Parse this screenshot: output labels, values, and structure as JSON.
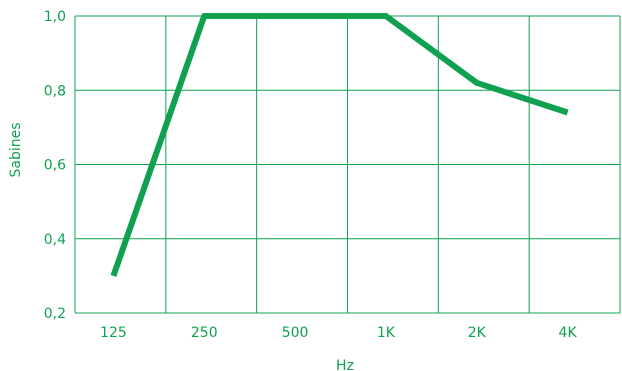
{
  "chart_data": {
    "type": "line",
    "categories": [
      "125",
      "250",
      "500",
      "1K",
      "2K",
      "4K"
    ],
    "series": [
      {
        "values": [
          0.3,
          1.0,
          1.0,
          1.0,
          0.82,
          0.74
        ]
      }
    ],
    "xlabel": "Hz",
    "ylabel": "Sabines",
    "ylim": [
      0.2,
      1.0
    ],
    "yticks": [
      "0,2",
      "0,4",
      "0,6",
      "0,8",
      "1,0"
    ],
    "grid": true,
    "color": "#0fa150"
  }
}
